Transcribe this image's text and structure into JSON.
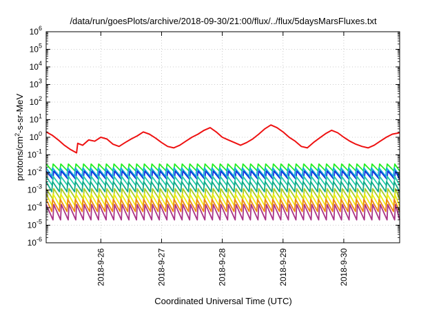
{
  "chart_data": {
    "type": "line",
    "title": "/data/run/goesPlots/archive/2018-09-30/21:00/flux/../flux/5daysMarsFluxes.txt",
    "xlabel": "Coordinated Universal Time (UTC)",
    "ylabel_parts": [
      "protons/cm",
      "2",
      "-s-sr-MeV"
    ],
    "yscale": "log",
    "ylim_exp": [
      -6,
      6
    ],
    "y_tick_base": "10",
    "y_tick_exponents": [
      "-6",
      "-5",
      "-4",
      "-3",
      "-2",
      "-1",
      "0",
      "1",
      "2",
      "3",
      "4",
      "5",
      "6"
    ],
    "xlim_days": [
      25.1,
      30.92
    ],
    "x_ticks": [
      {
        "label": "2018-9-26",
        "day": 26
      },
      {
        "label": "2018-9-27",
        "day": 27
      },
      {
        "label": "2018-9-28",
        "day": 28
      },
      {
        "label": "2018-9-29",
        "day": 29
      },
      {
        "label": "2018-9-30",
        "day": 30
      }
    ],
    "grid": true,
    "sawtooth_period_days": 0.125,
    "series": [
      {
        "color": "#ee1111",
        "x_day": [
          25.1,
          25.2,
          25.3,
          25.4,
          25.5,
          25.6,
          25.62,
          25.7,
          25.8,
          25.9,
          26.0,
          26.1,
          26.2,
          26.3,
          26.4,
          26.5,
          26.6,
          26.7,
          26.8,
          26.9,
          27.0,
          27.1,
          27.2,
          27.3,
          27.4,
          27.5,
          27.6,
          27.7,
          27.8,
          27.9,
          28.0,
          28.1,
          28.2,
          28.3,
          28.4,
          28.5,
          28.6,
          28.7,
          28.8,
          28.9,
          29.0,
          29.1,
          29.2,
          29.3,
          29.4,
          29.5,
          29.6,
          29.7,
          29.8,
          29.9,
          30.0,
          30.1,
          30.2,
          30.3,
          30.4,
          30.5,
          30.6,
          30.7,
          30.8,
          30.92
        ],
        "y": [
          2.0,
          1.3,
          0.7,
          0.35,
          0.2,
          0.13,
          0.45,
          0.35,
          0.7,
          0.6,
          1.0,
          0.8,
          0.4,
          0.3,
          0.5,
          0.8,
          1.2,
          2.0,
          1.5,
          0.9,
          0.5,
          0.3,
          0.25,
          0.35,
          0.6,
          1.0,
          1.5,
          2.5,
          3.5,
          2.0,
          1.0,
          0.7,
          0.5,
          0.35,
          0.5,
          0.8,
          1.5,
          3.0,
          5.0,
          3.5,
          2.0,
          1.0,
          0.6,
          0.3,
          0.25,
          0.5,
          0.9,
          1.6,
          2.5,
          1.8,
          1.0,
          0.6,
          0.4,
          0.3,
          0.25,
          0.35,
          0.6,
          1.0,
          1.5,
          1.8
        ],
        "sawtooth": false
      },
      {
        "color": "#22ee22",
        "peak": 0.03,
        "trough": 0.012,
        "sawtooth": true
      },
      {
        "color": "#11aadd",
        "peak": 0.018,
        "trough": 0.006,
        "sawtooth": true
      },
      {
        "color": "#1133dd",
        "peak": 0.012,
        "trough": 0.004,
        "sawtooth": true
      },
      {
        "color": "#22ccaa",
        "peak": 0.006,
        "trough": 0.0018,
        "sawtooth": true
      },
      {
        "color": "#11aa88",
        "peak": 0.003,
        "trough": 0.0008,
        "sawtooth": true
      },
      {
        "color": "#aacc22",
        "peak": 0.0012,
        "trough": 0.0003,
        "sawtooth": true
      },
      {
        "color": "#eeee11",
        "peak": 0.0006,
        "trough": 0.00012,
        "sawtooth": true
      },
      {
        "color": "#ee8811",
        "peak": 0.0003,
        "trough": 6e-05,
        "sawtooth": true
      },
      {
        "color": "#aa3388",
        "peak": 0.00015,
        "trough": 2e-05,
        "sawtooth": true
      }
    ]
  }
}
